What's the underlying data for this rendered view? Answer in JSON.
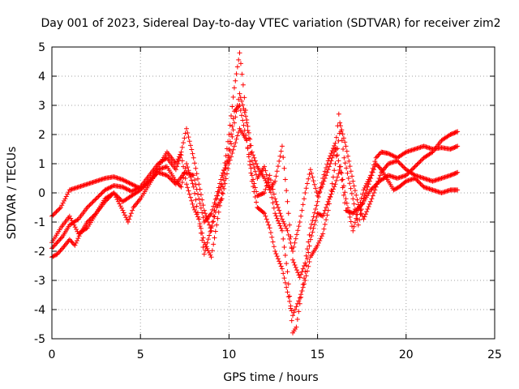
{
  "chart_data": {
    "type": "scatter",
    "title": "Day 001 of 2023, Sidereal Day-to-day VTEC variation (SDTVAR) for receiver zim2",
    "xlabel": "GPS time / hours",
    "ylabel": "SDTVAR / TECUs",
    "xlim": [
      0,
      25
    ],
    "ylim": [
      -5,
      5
    ],
    "xticks": [
      "0",
      "5",
      "10",
      "15",
      "20",
      "25"
    ],
    "yticks": [
      "-5",
      "-4",
      "-3",
      "-2",
      "-1",
      "0",
      "1",
      "2",
      "3",
      "4",
      "5"
    ],
    "grid": true,
    "marker": "+",
    "color": "#ff0000",
    "series": [
      {
        "points": [
          [
            0.0,
            -0.8
          ],
          [
            0.5,
            -0.5
          ],
          [
            1.0,
            0.1
          ],
          [
            1.5,
            0.2
          ],
          [
            2.0,
            0.3
          ],
          [
            2.5,
            0.4
          ],
          [
            3.0,
            0.5
          ],
          [
            3.5,
            0.55
          ],
          [
            4.0,
            0.45
          ],
          [
            4.5,
            0.3
          ],
          [
            5.0,
            0.15
          ],
          [
            5.5,
            0.4
          ],
          [
            6.0,
            0.9
          ],
          [
            6.5,
            1.4
          ],
          [
            7.0,
            1.0
          ],
          [
            7.3,
            1.4
          ],
          [
            7.6,
            2.2
          ],
          [
            8.0,
            1.2
          ],
          [
            8.3,
            0.3
          ],
          [
            8.6,
            -0.6
          ],
          [
            9.0,
            -1.3
          ],
          [
            9.3,
            -0.5
          ],
          [
            9.6,
            -0.2
          ],
          [
            10.0,
            1.0
          ],
          [
            10.3,
            1.6
          ],
          [
            10.6,
            2.2
          ],
          [
            11.0,
            1.8
          ],
          [
            11.3,
            0.6
          ],
          [
            11.6,
            -0.1
          ],
          [
            12.0,
            0.0
          ],
          [
            12.3,
            0.6
          ],
          [
            12.6,
            -0.2
          ],
          [
            13.0,
            -0.9
          ],
          [
            13.3,
            -1.3
          ],
          [
            13.6,
            -2.0
          ],
          [
            14.0,
            -1.0
          ],
          [
            14.3,
            0.0
          ],
          [
            14.6,
            0.8
          ],
          [
            15.0,
            -0.1
          ],
          [
            15.3,
            0.3
          ],
          [
            15.6,
            0.8
          ],
          [
            16.0,
            1.5
          ],
          [
            16.2,
            2.7
          ],
          [
            16.5,
            1.2
          ],
          [
            17.0,
            -0.2
          ],
          [
            17.3,
            -1.1
          ],
          [
            17.6,
            -0.2
          ],
          [
            18.0,
            0.5
          ],
          [
            18.3,
            1.0
          ],
          [
            18.6,
            0.8
          ],
          [
            19.0,
            0.4
          ],
          [
            19.3,
            0.1
          ],
          [
            19.6,
            0.2
          ],
          [
            20.0,
            0.4
          ],
          [
            20.5,
            0.5
          ],
          [
            21.0,
            0.2
          ],
          [
            21.5,
            0.1
          ],
          [
            22.0,
            0.0
          ],
          [
            22.5,
            0.1
          ],
          [
            22.9,
            0.1
          ]
        ]
      },
      {
        "points": [
          [
            0.0,
            -1.9
          ],
          [
            0.3,
            -1.7
          ],
          [
            0.6,
            -1.5
          ],
          [
            1.0,
            -1.1
          ],
          [
            1.5,
            -0.9
          ],
          [
            2.0,
            -0.5
          ],
          [
            2.5,
            -0.2
          ],
          [
            3.0,
            0.1
          ],
          [
            3.5,
            0.25
          ],
          [
            4.0,
            0.2
          ],
          [
            4.5,
            0.05
          ],
          [
            5.0,
            0.2
          ],
          [
            5.5,
            0.6
          ],
          [
            6.0,
            1.0
          ],
          [
            6.5,
            1.2
          ],
          [
            7.0,
            0.8
          ],
          [
            7.3,
            1.3
          ],
          [
            7.6,
            0.3
          ],
          [
            8.0,
            -0.5
          ],
          [
            8.3,
            -0.9
          ],
          [
            8.6,
            -2.1
          ],
          [
            9.0,
            -1.2
          ],
          [
            9.3,
            -0.2
          ],
          [
            9.6,
            0.3
          ],
          [
            10.0,
            2.0
          ],
          [
            10.3,
            3.6
          ],
          [
            10.6,
            4.8
          ],
          [
            10.8,
            3.7
          ],
          [
            11.0,
            2.4
          ],
          [
            11.3,
            1.1
          ],
          [
            11.6,
            0.5
          ],
          [
            12.0,
            0.9
          ],
          [
            12.3,
            0.2
          ],
          [
            12.6,
            -0.7
          ],
          [
            13.0,
            -1.3
          ],
          [
            13.3,
            -2.7
          ],
          [
            13.6,
            -4.8
          ],
          [
            13.8,
            -4.6
          ],
          [
            14.0,
            -3.8
          ],
          [
            14.3,
            -2.7
          ],
          [
            14.6,
            -1.6
          ],
          [
            15.0,
            -0.7
          ],
          [
            15.3,
            -0.8
          ],
          [
            15.6,
            -0.3
          ],
          [
            16.0,
            0.3
          ],
          [
            16.3,
            0.9
          ],
          [
            16.6,
            -0.2
          ],
          [
            17.0,
            -1.3
          ],
          [
            17.3,
            -0.6
          ],
          [
            17.6,
            0.1
          ],
          [
            18.0,
            0.6
          ],
          [
            18.3,
            1.2
          ],
          [
            18.6,
            1.4
          ],
          [
            19.0,
            1.35
          ],
          [
            19.5,
            1.2
          ],
          [
            20.0,
            1.4
          ],
          [
            20.5,
            1.5
          ],
          [
            21.0,
            1.6
          ],
          [
            21.5,
            1.5
          ],
          [
            22.0,
            1.55
          ],
          [
            22.5,
            1.5
          ],
          [
            22.9,
            1.6
          ]
        ]
      },
      {
        "points": [
          [
            0.0,
            -2.2
          ],
          [
            0.3,
            -2.1
          ],
          [
            0.6,
            -1.9
          ],
          [
            1.0,
            -1.6
          ],
          [
            1.3,
            -1.8
          ],
          [
            1.6,
            -1.4
          ],
          [
            2.0,
            -1.0
          ],
          [
            2.5,
            -0.7
          ],
          [
            3.0,
            -0.3
          ],
          [
            3.5,
            0.0
          ],
          [
            4.0,
            -0.6
          ],
          [
            4.3,
            -1.0
          ],
          [
            4.6,
            -0.5
          ],
          [
            5.0,
            -0.2
          ],
          [
            5.5,
            0.3
          ],
          [
            6.0,
            0.8
          ],
          [
            6.5,
            0.9
          ],
          [
            7.0,
            0.4
          ],
          [
            7.3,
            0.2
          ],
          [
            7.6,
            1.0
          ],
          [
            8.0,
            0.2
          ],
          [
            8.3,
            -0.9
          ],
          [
            8.6,
            -1.7
          ],
          [
            9.0,
            -2.2
          ],
          [
            9.3,
            -1.1
          ],
          [
            9.6,
            0.0
          ],
          [
            10.0,
            1.5
          ],
          [
            10.3,
            2.8
          ],
          [
            10.6,
            3.0
          ],
          [
            11.0,
            1.8
          ],
          [
            11.3,
            0.4
          ],
          [
            11.6,
            -0.5
          ],
          [
            12.0,
            -0.7
          ],
          [
            12.3,
            -1.2
          ],
          [
            12.6,
            -2.0
          ],
          [
            13.0,
            -2.6
          ],
          [
            13.3,
            -3.4
          ],
          [
            13.6,
            -4.2
          ],
          [
            13.8,
            -3.9
          ],
          [
            14.0,
            -3.6
          ],
          [
            14.3,
            -3.0
          ],
          [
            14.6,
            -2.2
          ],
          [
            15.0,
            -1.8
          ],
          [
            15.3,
            -1.4
          ],
          [
            15.6,
            -0.6
          ],
          [
            16.0,
            1.0
          ],
          [
            16.3,
            2.3
          ],
          [
            16.6,
            1.6
          ],
          [
            17.0,
            0.4
          ],
          [
            17.3,
            -0.4
          ],
          [
            17.6,
            -0.9
          ],
          [
            18.0,
            -0.3
          ],
          [
            18.3,
            0.2
          ],
          [
            18.6,
            0.7
          ],
          [
            19.0,
            1.0
          ],
          [
            19.5,
            1.1
          ],
          [
            20.0,
            0.8
          ],
          [
            20.5,
            0.6
          ],
          [
            21.0,
            0.5
          ],
          [
            21.5,
            0.4
          ],
          [
            22.0,
            0.5
          ],
          [
            22.5,
            0.6
          ],
          [
            22.9,
            0.7
          ]
        ]
      },
      {
        "points": [
          [
            0.0,
            -1.7
          ],
          [
            0.5,
            -1.2
          ],
          [
            1.0,
            -0.8
          ],
          [
            1.5,
            -1.4
          ],
          [
            2.0,
            -1.2
          ],
          [
            2.5,
            -0.7
          ],
          [
            3.0,
            -0.2
          ],
          [
            3.5,
            0.0
          ],
          [
            4.0,
            -0.3
          ],
          [
            4.5,
            -0.1
          ],
          [
            5.0,
            0.1
          ],
          [
            5.5,
            0.4
          ],
          [
            6.0,
            0.7
          ],
          [
            6.5,
            0.6
          ],
          [
            7.0,
            0.3
          ],
          [
            7.5,
            0.7
          ],
          [
            8.0,
            0.6
          ],
          [
            8.3,
            -0.2
          ],
          [
            8.6,
            -1.0
          ],
          [
            9.0,
            -0.7
          ],
          [
            9.3,
            -0.1
          ],
          [
            9.6,
            0.6
          ],
          [
            10.0,
            1.2
          ],
          [
            10.3,
            2.4
          ],
          [
            10.6,
            3.4
          ],
          [
            11.0,
            2.5
          ],
          [
            11.3,
            1.4
          ],
          [
            11.6,
            0.9
          ],
          [
            12.0,
            0.5
          ],
          [
            12.3,
            0.1
          ],
          [
            12.6,
            0.4
          ],
          [
            13.0,
            1.6
          ],
          [
            13.3,
            -0.3
          ],
          [
            13.6,
            -2.3
          ],
          [
            14.0,
            -2.9
          ],
          [
            14.3,
            -2.4
          ],
          [
            14.6,
            -1.2
          ],
          [
            15.0,
            -0.3
          ],
          [
            15.3,
            0.5
          ],
          [
            15.6,
            1.1
          ],
          [
            16.0,
            1.7
          ],
          [
            16.3,
            0.7
          ],
          [
            16.6,
            -0.6
          ],
          [
            17.0,
            -0.7
          ],
          [
            17.5,
            -0.4
          ],
          [
            18.0,
            0.1
          ],
          [
            18.5,
            0.4
          ],
          [
            19.0,
            0.6
          ],
          [
            19.5,
            0.5
          ],
          [
            20.0,
            0.6
          ],
          [
            20.5,
            0.9
          ],
          [
            21.0,
            1.2
          ],
          [
            21.5,
            1.4
          ],
          [
            22.0,
            1.8
          ],
          [
            22.5,
            2.0
          ],
          [
            22.9,
            2.1
          ]
        ]
      }
    ]
  }
}
